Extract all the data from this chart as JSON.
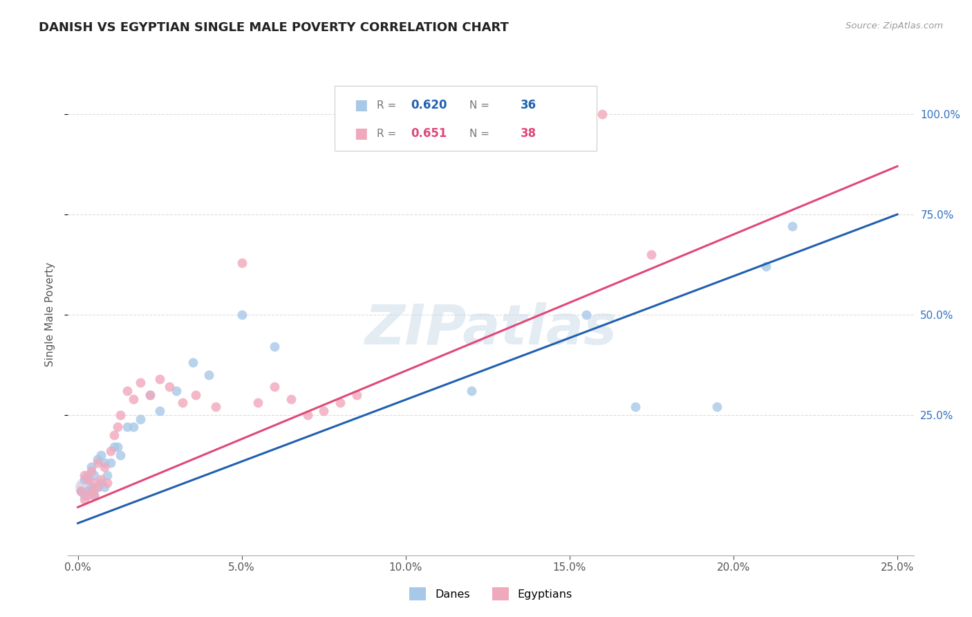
{
  "title": "DANISH VS EGYPTIAN SINGLE MALE POVERTY CORRELATION CHART",
  "source": "Source: ZipAtlas.com",
  "ylabel": "Single Male Poverty",
  "watermark": "ZIPatlas",
  "dane_R": "0.620",
  "dane_N": "36",
  "egypt_R": "0.651",
  "egypt_N": "38",
  "blue_scatter_color": "#a8c8e8",
  "pink_scatter_color": "#f0a8bc",
  "blue_line_color": "#2060b0",
  "pink_line_color": "#e04878",
  "right_tick_color": "#3070c0",
  "grid_color": "#dddddd",
  "xlim": [
    -0.003,
    0.255
  ],
  "ylim": [
    -0.1,
    1.1
  ],
  "xtick_vals": [
    0.0,
    0.05,
    0.1,
    0.15,
    0.2,
    0.25
  ],
  "xtick_labels": [
    "0.0%",
    "5.0%",
    "10.0%",
    "15.0%",
    "20.0%",
    "25.0%"
  ],
  "ytick_vals": [
    0.25,
    0.5,
    0.75,
    1.0
  ],
  "ytick_labels": [
    "25.0%",
    "50.0%",
    "75.0%",
    "100.0%"
  ],
  "blue_line_x0": 0.0,
  "blue_line_y0": -0.02,
  "blue_line_x1": 0.25,
  "blue_line_y1": 0.75,
  "pink_line_x0": 0.0,
  "pink_line_y0": 0.02,
  "pink_line_x1": 0.25,
  "pink_line_y1": 0.87,
  "dane_x": [
    0.001,
    0.002,
    0.002,
    0.003,
    0.003,
    0.004,
    0.004,
    0.005,
    0.005,
    0.006,
    0.006,
    0.007,
    0.007,
    0.008,
    0.008,
    0.009,
    0.01,
    0.011,
    0.012,
    0.013,
    0.015,
    0.017,
    0.019,
    0.022,
    0.025,
    0.03,
    0.035,
    0.04,
    0.05,
    0.06,
    0.12,
    0.155,
    0.17,
    0.195,
    0.21,
    0.218
  ],
  "dane_y": [
    0.06,
    0.05,
    0.09,
    0.06,
    0.1,
    0.07,
    0.12,
    0.05,
    0.1,
    0.07,
    0.14,
    0.08,
    0.15,
    0.07,
    0.13,
    0.1,
    0.13,
    0.17,
    0.17,
    0.15,
    0.22,
    0.22,
    0.24,
    0.3,
    0.26,
    0.31,
    0.38,
    0.35,
    0.5,
    0.42,
    0.31,
    0.5,
    0.27,
    0.27,
    0.62,
    0.72
  ],
  "egypt_x": [
    0.001,
    0.002,
    0.002,
    0.003,
    0.003,
    0.004,
    0.004,
    0.005,
    0.005,
    0.006,
    0.006,
    0.007,
    0.008,
    0.009,
    0.01,
    0.011,
    0.012,
    0.013,
    0.015,
    0.017,
    0.019,
    0.022,
    0.025,
    0.028,
    0.032,
    0.036,
    0.042,
    0.05,
    0.055,
    0.06,
    0.065,
    0.07,
    0.075,
    0.08,
    0.085,
    0.15,
    0.16,
    0.175
  ],
  "egypt_y": [
    0.06,
    0.04,
    0.1,
    0.05,
    0.09,
    0.06,
    0.11,
    0.05,
    0.08,
    0.07,
    0.13,
    0.09,
    0.12,
    0.08,
    0.16,
    0.2,
    0.22,
    0.25,
    0.31,
    0.29,
    0.33,
    0.3,
    0.34,
    0.32,
    0.28,
    0.3,
    0.27,
    0.63,
    0.28,
    0.32,
    0.29,
    0.25,
    0.26,
    0.28,
    0.3,
    1.0,
    1.0,
    0.65
  ]
}
